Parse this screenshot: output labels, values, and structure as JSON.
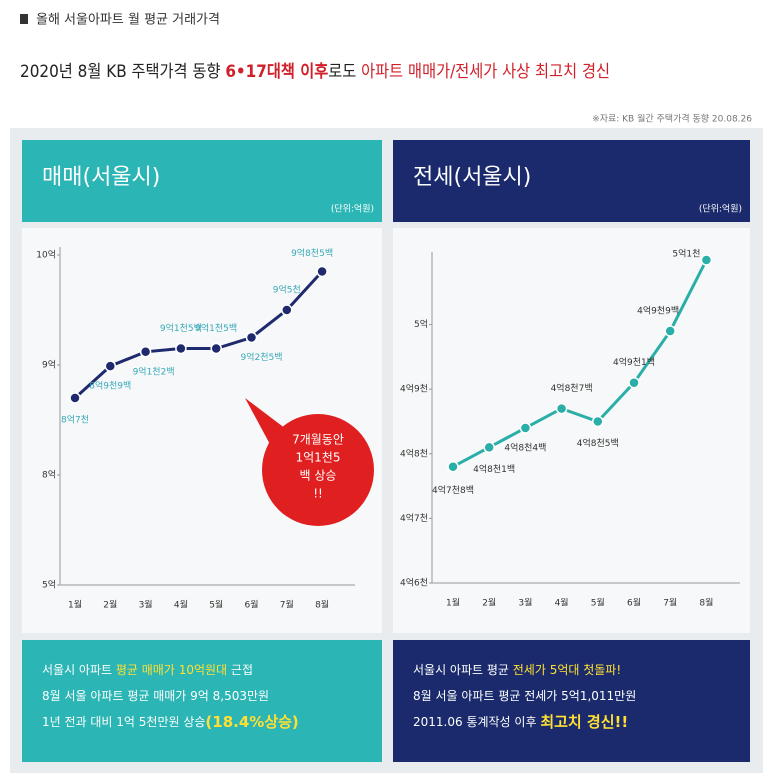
{
  "header": {
    "title": "올해 서울아파트 월 평균 거래가격",
    "headline": [
      "2020년 8월 KB 주택가격 동향 ",
      "6•17대책 이후",
      "로도 ",
      "아파트 매매가/전세가 사상 최고치 경신"
    ],
    "source": "※자료: KB 월간 주택가격 동향 20.08.26"
  },
  "chart_data": [
    {
      "type": "line",
      "title": "매매(서울시)",
      "unit": "(단위:억원)",
      "color": "#1f2a6e",
      "axis_break": true,
      "categories": [
        "1월",
        "2월",
        "3월",
        "4월",
        "5월",
        "6월",
        "7월",
        "8월"
      ],
      "values": [
        8.7,
        8.99,
        9.12,
        9.15,
        9.15,
        9.25,
        9.5,
        9.85
      ],
      "value_labels": [
        "8억7천",
        "8억9천9백",
        "9억1천2백",
        "9억1천5백",
        "9억1천5백",
        "9억2천5백",
        "9억5천",
        "9억8천5백"
      ],
      "ylim": [
        5,
        10
      ],
      "yticks": [
        {
          "value": 10,
          "label": "10억"
        },
        {
          "value": 9,
          "label": "9억"
        },
        {
          "value": 8,
          "label": "8억"
        },
        {
          "value": 5,
          "label": "5억"
        }
      ],
      "annotation": [
        "7개월동안",
        "1억1천5",
        "백 상승",
        "!!"
      ],
      "summary": [
        [
          "서울시 아파트 ",
          "평균 매매가 10억원대",
          " 근접"
        ],
        [
          "8월 서울 아파트 평균 매매가 9억 8,503만원"
        ],
        [
          "1년 전과 대비 1억 5천만원 상승",
          "(18.4%상승)"
        ]
      ]
    },
    {
      "type": "line",
      "title": "전세(서울시)",
      "unit": "(단위:억원)",
      "color": "#2aaea8",
      "categories": [
        "1월",
        "2월",
        "3월",
        "4월",
        "5월",
        "6월",
        "7월",
        "8월"
      ],
      "values": [
        4.78,
        4.81,
        4.84,
        4.87,
        4.85,
        4.91,
        4.99,
        5.1
      ],
      "value_labels": [
        "4억7천8백",
        "4억8천1백",
        "4억8천4백",
        "4억8천7백",
        "4억8천5백",
        "4억9천1백",
        "4억9천9백",
        "5억1천"
      ],
      "ylim": [
        4.6,
        5.1
      ],
      "yticks": [
        {
          "value": 5,
          "label": "5억"
        },
        {
          "value": 4.9,
          "label": "4억9천"
        },
        {
          "value": 4.8,
          "label": "4억8천"
        },
        {
          "value": 4.7,
          "label": "4억7천"
        },
        {
          "value": 4.6,
          "label": "4억6천"
        }
      ],
      "summary": [
        [
          "서울시 아파트 평균 ",
          "전세가 5억대 첫돌파!"
        ],
        [
          "8월 서울 아파트 평균 전세가 5억1,011만원"
        ],
        [
          "2011.06 통계작성 이후 ",
          "최고치 경신!!"
        ]
      ]
    }
  ]
}
